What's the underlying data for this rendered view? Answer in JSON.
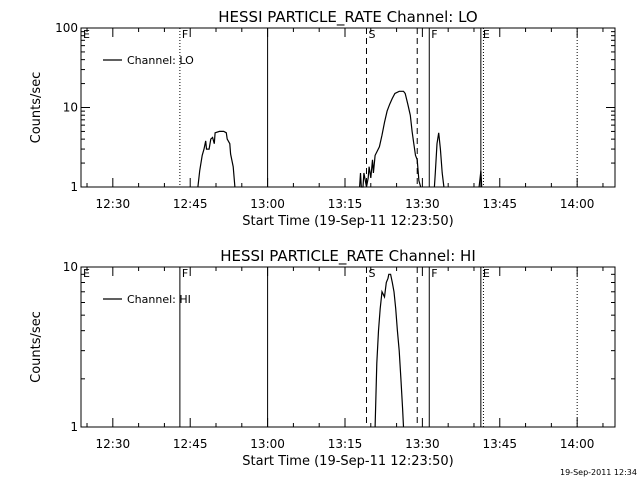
{
  "timestamp": "19-Sep-2011 12:34",
  "chart_data": [
    {
      "type": "line",
      "title": "HESSI PARTICLE_RATE Channel: LO",
      "xlabel": "Start Time (19-Sep-11 12:23:50)",
      "ylabel": "Counts/sec",
      "yscale": "log",
      "ylim": [
        1,
        100
      ],
      "y_ticks": [
        "1",
        "10",
        "100"
      ],
      "xlim": [
        "12:23:50",
        "14:07:20"
      ],
      "x_ticks": [
        "12:30",
        "12:45",
        "13:00",
        "13:15",
        "13:30",
        "13:45",
        "14:00"
      ],
      "legend": "top-left",
      "series": [
        {
          "name": "Channel: LO",
          "segments": [
            [
              [
                "12:46:30",
                1
              ],
              [
                "12:46:50",
                1.6
              ],
              [
                "12:47:20",
                2.5
              ],
              [
                "12:47:40",
                3
              ],
              [
                "12:48:00",
                3.8
              ],
              [
                "12:48:10",
                3
              ],
              [
                "12:48:40",
                3
              ],
              [
                "12:49:00",
                4
              ],
              [
                "12:49:20",
                4.2
              ],
              [
                "12:49:40",
                3.5
              ],
              [
                "12:49:50",
                4.8
              ],
              [
                "12:50:40",
                5
              ],
              [
                "12:51:30",
                5
              ],
              [
                "12:52:00",
                4.8
              ],
              [
                "12:52:10",
                4
              ],
              [
                "12:52:40",
                3.5
              ],
              [
                "12:52:50",
                2.6
              ],
              [
                "12:53:20",
                1.8
              ],
              [
                "12:53:40",
                1
              ]
            ],
            [
              [
                "13:17:50",
                1
              ],
              [
                "13:18:00",
                1.5
              ],
              [
                "13:18:10",
                1
              ],
              [
                "13:18:30",
                1
              ],
              [
                "13:18:40",
                1.5
              ],
              [
                "13:19:10",
                1
              ],
              [
                "13:19:30",
                1.3
              ],
              [
                "13:19:40",
                1.8
              ],
              [
                "13:20:00",
                1.3
              ],
              [
                "13:20:20",
                2.2
              ],
              [
                "13:20:30",
                1.5
              ],
              [
                "13:20:50",
                2.5
              ],
              [
                "13:21:40",
                3.2
              ],
              [
                "13:22:10",
                4.5
              ],
              [
                "13:22:40",
                6.5
              ],
              [
                "13:23:10",
                9
              ],
              [
                "13:23:40",
                11
              ],
              [
                "13:24:10",
                13
              ],
              [
                "13:24:40",
                15
              ],
              [
                "13:25:30",
                16
              ],
              [
                "13:26:20",
                16
              ],
              [
                "13:26:40",
                15
              ],
              [
                "13:27:10",
                11
              ],
              [
                "13:27:40",
                8
              ],
              [
                "13:28:00",
                5
              ],
              [
                "13:28:20",
                3.5
              ],
              [
                "13:28:40",
                2.5
              ],
              [
                "13:29:00",
                2.2
              ],
              [
                "13:29:20",
                1.2
              ],
              [
                "13:29:40",
                1
              ]
            ],
            [
              [
                "13:32:20",
                1
              ],
              [
                "13:32:30",
                1.5
              ],
              [
                "13:32:50",
                3.5
              ],
              [
                "13:33:10",
                4.8
              ],
              [
                "13:33:30",
                3
              ],
              [
                "13:33:50",
                1.5
              ],
              [
                "13:34:10",
                1
              ]
            ],
            [
              [
                "13:41:00",
                1
              ],
              [
                "13:41:20",
                1.6
              ],
              [
                "13:41:30",
                1
              ]
            ]
          ]
        }
      ],
      "markers": [
        {
          "label": "E",
          "time": "12:23:50",
          "style": "dotted"
        },
        {
          "label": "F",
          "time": "12:43:00",
          "style": "dotted"
        },
        {
          "label": "",
          "time": "13:00:00",
          "style": "solid"
        },
        {
          "label": "S",
          "time": "13:19:10",
          "style": "dashed"
        },
        {
          "label": "",
          "time": "13:29:00",
          "style": "dashed"
        },
        {
          "label": "F",
          "time": "13:31:20",
          "style": "solid"
        },
        {
          "label": "E",
          "time": "13:41:20",
          "style": "solid"
        },
        {
          "label": "",
          "time": "13:41:50",
          "style": "dotted"
        },
        {
          "label": "",
          "time": "14:00:00",
          "style": "dotted"
        }
      ]
    },
    {
      "type": "line",
      "title": "HESSI PARTICLE_RATE Channel: HI",
      "xlabel": "Start Time (19-Sep-11 12:23:50)",
      "ylabel": "Counts/sec",
      "yscale": "log",
      "ylim": [
        1,
        10
      ],
      "y_ticks": [
        "1",
        "10"
      ],
      "xlim": [
        "12:23:50",
        "14:07:20"
      ],
      "x_ticks": [
        "12:30",
        "12:45",
        "13:00",
        "13:15",
        "13:30",
        "13:45",
        "14:00"
      ],
      "legend": "top-left",
      "series": [
        {
          "name": "Channel: HI",
          "segments": [
            [
              [
                "13:20:50",
                1
              ],
              [
                "13:21:10",
                2.5
              ],
              [
                "13:21:30",
                4
              ],
              [
                "13:21:50",
                5.5
              ],
              [
                "13:22:10",
                7
              ],
              [
                "13:22:40",
                6.5
              ],
              [
                "13:23:00",
                8
              ],
              [
                "13:23:20",
                8.5
              ],
              [
                "13:23:30",
                9
              ],
              [
                "13:23:50",
                9
              ],
              [
                "13:24:10",
                8
              ],
              [
                "13:24:30",
                7
              ],
              [
                "13:24:50",
                5.5
              ],
              [
                "13:25:10",
                4
              ],
              [
                "13:25:30",
                3
              ],
              [
                "13:25:50",
                2
              ],
              [
                "13:26:10",
                1.3
              ],
              [
                "13:26:20",
                1
              ]
            ]
          ]
        }
      ],
      "markers": [
        {
          "label": "E",
          "time": "12:23:50",
          "style": "dotted"
        },
        {
          "label": "F",
          "time": "12:43:00",
          "style": "solid"
        },
        {
          "label": "",
          "time": "13:00:00",
          "style": "solid"
        },
        {
          "label": "S",
          "time": "13:19:10",
          "style": "dashed"
        },
        {
          "label": "",
          "time": "13:29:00",
          "style": "dashed"
        },
        {
          "label": "F",
          "time": "13:31:20",
          "style": "solid"
        },
        {
          "label": "E",
          "time": "13:41:20",
          "style": "solid"
        },
        {
          "label": "",
          "time": "13:41:50",
          "style": "dotted"
        },
        {
          "label": "",
          "time": "14:00:00",
          "style": "dotted"
        }
      ]
    }
  ]
}
